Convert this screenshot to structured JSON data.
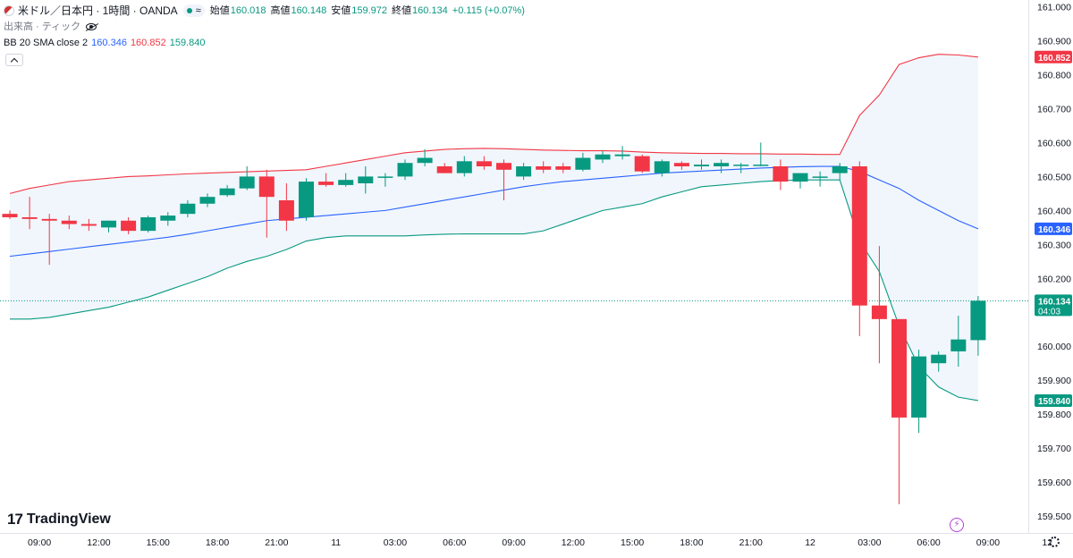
{
  "legend": {
    "symbol": "米ドル／日本円 · 1時間 · OANDA",
    "status_icon": "≈",
    "open_label": "始値",
    "open": "160.018",
    "high_label": "高値",
    "high": "160.148",
    "low_label": "安値",
    "low": "159.972",
    "close_label": "終値",
    "close": "160.134",
    "change": "+0.115 (+0.07%)",
    "volume_label": "出来高 · ティック",
    "bb_label": "BB 20 SMA close 2",
    "bb_mid": "160.346",
    "bb_up": "160.852",
    "bb_low": "159.840"
  },
  "brand": {
    "logo_mark": "17",
    "logo_text": "TradingView"
  },
  "colors": {
    "up": "#089981",
    "down": "#f23645",
    "basis": "#2962ff",
    "upper": "#f23645",
    "lower": "#089981",
    "band_fill": "#eef5fc",
    "axis_text": "#131722"
  },
  "chart_data": {
    "type": "candlestick",
    "timeframe": "1h",
    "ylim": [
      159.45,
      161.02
    ],
    "price_ticks": [
      "161.000",
      "160.900",
      "160.800",
      "160.700",
      "160.600",
      "160.500",
      "160.400",
      "160.300",
      "160.200",
      "160.000",
      "159.900",
      "159.800",
      "159.700",
      "159.600",
      "159.500"
    ],
    "time_ticks": [
      {
        "label": "09:00",
        "idx": 1.5
      },
      {
        "label": "12:00",
        "idx": 4.5
      },
      {
        "label": "15:00",
        "idx": 7.5
      },
      {
        "label": "18:00",
        "idx": 10.5
      },
      {
        "label": "21:00",
        "idx": 13.5
      },
      {
        "label": "11",
        "idx": 16.5
      },
      {
        "label": "03:00",
        "idx": 19.5
      },
      {
        "label": "06:00",
        "idx": 22.5
      },
      {
        "label": "09:00",
        "idx": 25.5
      },
      {
        "label": "12:00",
        "idx": 28.5
      },
      {
        "label": "15:00",
        "idx": 31.5
      },
      {
        "label": "18:00",
        "idx": 34.5
      },
      {
        "label": "21:00",
        "idx": 37.5
      },
      {
        "label": "12",
        "idx": 40.5
      },
      {
        "label": "03:00",
        "idx": 43.5
      },
      {
        "label": "06:00",
        "idx": 46.5
      },
      {
        "label": "09:00",
        "idx": 49.5
      },
      {
        "label": "12",
        "idx": 52.5
      }
    ],
    "candles": [
      {
        "o": 160.39,
        "h": 160.4,
        "l": 160.375,
        "c": 160.38
      },
      {
        "o": 160.38,
        "h": 160.44,
        "l": 160.345,
        "c": 160.375
      },
      {
        "o": 160.375,
        "h": 160.39,
        "l": 160.24,
        "c": 160.37
      },
      {
        "o": 160.37,
        "h": 160.385,
        "l": 160.345,
        "c": 160.36
      },
      {
        "o": 160.36,
        "h": 160.375,
        "l": 160.34,
        "c": 160.355
      },
      {
        "o": 160.35,
        "h": 160.37,
        "l": 160.335,
        "c": 160.37
      },
      {
        "o": 160.37,
        "h": 160.38,
        "l": 160.33,
        "c": 160.34
      },
      {
        "o": 160.34,
        "h": 160.385,
        "l": 160.335,
        "c": 160.38
      },
      {
        "o": 160.37,
        "h": 160.395,
        "l": 160.355,
        "c": 160.385
      },
      {
        "o": 160.39,
        "h": 160.43,
        "l": 160.38,
        "c": 160.42
      },
      {
        "o": 160.42,
        "h": 160.45,
        "l": 160.41,
        "c": 160.44
      },
      {
        "o": 160.445,
        "h": 160.475,
        "l": 160.44,
        "c": 160.465
      },
      {
        "o": 160.465,
        "h": 160.53,
        "l": 160.46,
        "c": 160.5
      },
      {
        "o": 160.5,
        "h": 160.52,
        "l": 160.32,
        "c": 160.44
      },
      {
        "o": 160.43,
        "h": 160.48,
        "l": 160.34,
        "c": 160.37
      },
      {
        "o": 160.38,
        "h": 160.495,
        "l": 160.37,
        "c": 160.485
      },
      {
        "o": 160.485,
        "h": 160.51,
        "l": 160.47,
        "c": 160.475
      },
      {
        "o": 160.475,
        "h": 160.51,
        "l": 160.47,
        "c": 160.49
      },
      {
        "o": 160.48,
        "h": 160.53,
        "l": 160.45,
        "c": 160.5
      },
      {
        "o": 160.5,
        "h": 160.51,
        "l": 160.47,
        "c": 160.5
      },
      {
        "o": 160.5,
        "h": 160.55,
        "l": 160.49,
        "c": 160.54
      },
      {
        "o": 160.54,
        "h": 160.58,
        "l": 160.53,
        "c": 160.555
      },
      {
        "o": 160.53,
        "h": 160.54,
        "l": 160.51,
        "c": 160.51
      },
      {
        "o": 160.51,
        "h": 160.56,
        "l": 160.5,
        "c": 160.545
      },
      {
        "o": 160.545,
        "h": 160.56,
        "l": 160.52,
        "c": 160.53
      },
      {
        "o": 160.54,
        "h": 160.55,
        "l": 160.43,
        "c": 160.52
      },
      {
        "o": 160.5,
        "h": 160.54,
        "l": 160.49,
        "c": 160.53
      },
      {
        "o": 160.53,
        "h": 160.545,
        "l": 160.51,
        "c": 160.52
      },
      {
        "o": 160.53,
        "h": 160.54,
        "l": 160.51,
        "c": 160.52
      },
      {
        "o": 160.52,
        "h": 160.57,
        "l": 160.515,
        "c": 160.555
      },
      {
        "o": 160.55,
        "h": 160.575,
        "l": 160.54,
        "c": 160.565
      },
      {
        "o": 160.56,
        "h": 160.59,
        "l": 160.55,
        "c": 160.565
      },
      {
        "o": 160.56,
        "h": 160.565,
        "l": 160.51,
        "c": 160.515
      },
      {
        "o": 160.51,
        "h": 160.55,
        "l": 160.5,
        "c": 160.545
      },
      {
        "o": 160.54,
        "h": 160.545,
        "l": 160.52,
        "c": 160.53
      },
      {
        "o": 160.53,
        "h": 160.55,
        "l": 160.52,
        "c": 160.535
      },
      {
        "o": 160.53,
        "h": 160.55,
        "l": 160.51,
        "c": 160.54
      },
      {
        "o": 160.535,
        "h": 160.54,
        "l": 160.51,
        "c": 160.535
      },
      {
        "o": 160.535,
        "h": 160.6,
        "l": 160.53,
        "c": 160.535
      },
      {
        "o": 160.53,
        "h": 160.55,
        "l": 160.46,
        "c": 160.485
      },
      {
        "o": 160.485,
        "h": 160.51,
        "l": 160.465,
        "c": 160.51
      },
      {
        "o": 160.5,
        "h": 160.515,
        "l": 160.47,
        "c": 160.5
      },
      {
        "o": 160.51,
        "h": 160.54,
        "l": 160.49,
        "c": 160.53
      },
      {
        "o": 160.53,
        "h": 160.545,
        "l": 160.03,
        "c": 160.12
      },
      {
        "o": 160.12,
        "h": 160.295,
        "l": 159.95,
        "c": 160.08
      },
      {
        "o": 160.08,
        "h": 160.08,
        "l": 159.535,
        "c": 159.79
      },
      {
        "o": 159.79,
        "h": 159.99,
        "l": 159.745,
        "c": 159.97
      },
      {
        "o": 159.95,
        "h": 159.985,
        "l": 159.925,
        "c": 159.975
      },
      {
        "o": 159.985,
        "h": 160.09,
        "l": 159.94,
        "c": 160.02
      },
      {
        "o": 160.018,
        "h": 160.148,
        "l": 159.972,
        "c": 160.134
      }
    ],
    "bb_upper": [
      160.45,
      160.465,
      160.475,
      160.485,
      160.49,
      160.495,
      160.5,
      160.502,
      160.505,
      160.508,
      160.51,
      160.512,
      160.514,
      160.516,
      160.518,
      160.52,
      160.53,
      160.54,
      160.55,
      160.56,
      160.57,
      160.575,
      160.58,
      160.582,
      160.583,
      160.582,
      160.58,
      160.578,
      160.577,
      160.576,
      160.576,
      160.575,
      160.572,
      160.57,
      160.569,
      160.568,
      160.568,
      160.567,
      160.567,
      160.566,
      160.566,
      160.565,
      160.565,
      160.68,
      160.74,
      160.83,
      160.85,
      160.86,
      160.858,
      160.852
    ],
    "bb_basis": [
      160.265,
      160.272,
      160.279,
      160.286,
      160.293,
      160.3,
      160.307,
      160.314,
      160.321,
      160.33,
      160.34,
      160.35,
      160.36,
      160.37,
      160.375,
      160.38,
      160.385,
      160.39,
      160.395,
      160.4,
      160.41,
      160.42,
      160.43,
      160.44,
      160.45,
      160.46,
      160.47,
      160.478,
      160.485,
      160.49,
      160.495,
      160.5,
      160.505,
      160.51,
      160.513,
      160.516,
      160.519,
      160.522,
      160.525,
      160.527,
      160.529,
      160.53,
      160.53,
      160.515,
      160.49,
      160.465,
      160.43,
      160.4,
      160.37,
      160.346
    ],
    "bb_lower": [
      160.08,
      160.08,
      160.085,
      160.095,
      160.105,
      160.115,
      160.13,
      160.145,
      160.165,
      160.185,
      160.205,
      160.23,
      160.25,
      160.265,
      160.285,
      160.31,
      160.32,
      160.325,
      160.325,
      160.325,
      160.325,
      160.328,
      160.33,
      160.331,
      160.331,
      160.331,
      160.331,
      160.34,
      160.36,
      160.38,
      160.4,
      160.41,
      160.42,
      160.44,
      160.455,
      160.47,
      160.475,
      160.48,
      160.485,
      160.488,
      160.49,
      160.49,
      160.49,
      160.31,
      160.22,
      160.06,
      159.94,
      159.88,
      159.85,
      159.84
    ],
    "last_price": 160.134,
    "last_label": "160.134",
    "countdown": "04:03"
  }
}
